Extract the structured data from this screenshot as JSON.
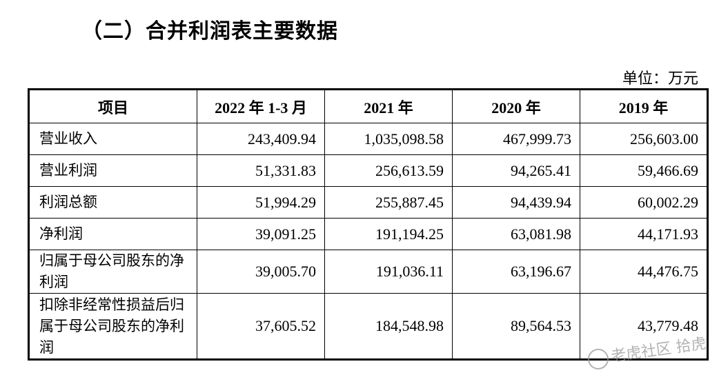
{
  "title": "（二）合并利润表主要数据",
  "unit": "单位：万元",
  "table": {
    "headers": [
      "项目",
      "2022 年 1-3 月",
      "2021 年",
      "2020 年",
      "2019 年"
    ],
    "rows": [
      {
        "label": "营业收入",
        "values": [
          "243,409.94",
          "1,035,098.58",
          "467,999.73",
          "256,603.00"
        ]
      },
      {
        "label": "营业利润",
        "values": [
          "51,331.83",
          "256,613.59",
          "94,265.41",
          "59,466.69"
        ]
      },
      {
        "label": "利润总额",
        "values": [
          "51,994.29",
          "255,887.45",
          "94,439.94",
          "60,002.29"
        ]
      },
      {
        "label": "净利润",
        "values": [
          "39,091.25",
          "191,194.25",
          "63,081.98",
          "44,171.93"
        ]
      },
      {
        "label": "归属于母公司股东的净利润",
        "values": [
          "39,005.70",
          "191,036.11",
          "63,196.67",
          "44,476.75"
        ]
      },
      {
        "label": "扣除非经常性损益后归属于母公司股东的净利润",
        "values": [
          "37,605.52",
          "184,548.98",
          "89,564.53",
          "43,779.48"
        ]
      }
    ]
  },
  "watermark": "老虎社区 拾虎"
}
